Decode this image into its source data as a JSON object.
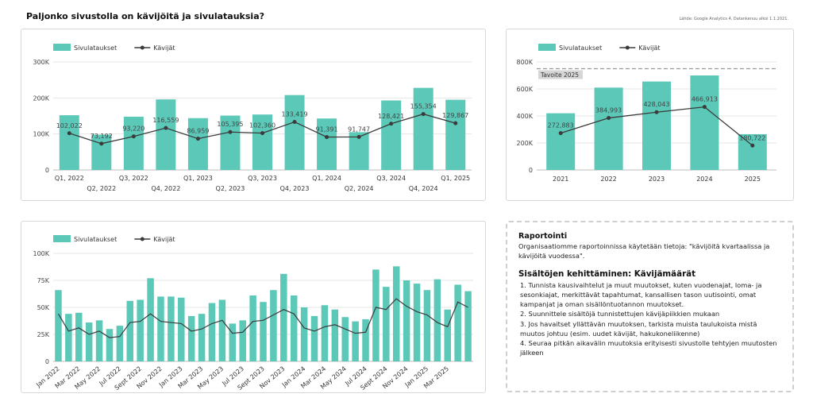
{
  "title": "Paljonko sivustolla on kävijöitä ja sivulatauksia?",
  "source": "Lähde: Google Analytics 4. Datankenuu alkoi 1.1.2021.",
  "colors": {
    "bar": "#5bc8b8",
    "line": "#3b3b3b",
    "grid": "#e6e6e6",
    "target": "#9a9a9a"
  },
  "chart_data": [
    {
      "id": "quarterly",
      "type": "bar",
      "legend": [
        "Sivulataukset",
        "Kävijät"
      ],
      "legend_position": "top-left",
      "ylim": [
        0,
        300000
      ],
      "y_ticks": [
        0,
        100000,
        200000,
        300000
      ],
      "y_tick_labels": [
        "0",
        "100K",
        "200K",
        "300K"
      ],
      "categories": [
        "Q1, 2022",
        "Q2, 2022",
        "Q3, 2022",
        "Q4, 2022",
        "Q1, 2023",
        "Q2, 2023",
        "Q3, 2023",
        "Q4, 2023",
        "Q1, 2024",
        "Q2, 2024",
        "Q3, 2024",
        "Q4, 2024",
        "Q1, 2025"
      ],
      "series": [
        {
          "name": "Sivulataukset",
          "type": "bar",
          "values": [
            152000,
            98000,
            148000,
            196000,
            144000,
            151000,
            154000,
            208000,
            143000,
            105000,
            193000,
            228000,
            195000
          ]
        },
        {
          "name": "Kävijät",
          "type": "line",
          "values": [
            102022,
            73192,
            93220,
            116559,
            86959,
            105395,
            102360,
            133419,
            91391,
            91747,
            128421,
            155354,
            129867
          ],
          "labels": [
            "102,022",
            "73,192",
            "93,220",
            "116,559",
            "86,959",
            "105,395",
            "102,360",
            "133,419",
            "91,391",
            "91,747",
            "128,421",
            "155,354",
            "129,867"
          ]
        }
      ],
      "grid": true
    },
    {
      "id": "yearly",
      "type": "bar",
      "legend": [
        "Sivulataukset",
        "Kävijät"
      ],
      "legend_position": "top-left",
      "ylim": [
        0,
        800000
      ],
      "y_ticks": [
        0,
        200000,
        400000,
        600000,
        800000
      ],
      "y_tick_labels": [
        "0",
        "200K",
        "400K",
        "600K",
        "800K"
      ],
      "categories": [
        "2021",
        "2022",
        "2023",
        "2024",
        "2025"
      ],
      "series": [
        {
          "name": "Sivulataukset",
          "type": "bar",
          "values": [
            420000,
            610000,
            655000,
            700000,
            265000
          ]
        },
        {
          "name": "Kävijät",
          "type": "line",
          "values": [
            272883,
            384993,
            428043,
            466913,
            180722
          ],
          "labels": [
            "272,883",
            "384,993",
            "428,043",
            "466,913",
            "180,722"
          ]
        }
      ],
      "target": {
        "label": "Tavoite 2025",
        "value": 750000
      },
      "grid": true
    },
    {
      "id": "monthly",
      "type": "bar",
      "legend": [
        "Sivulataukset",
        "Kävijät"
      ],
      "legend_position": "top-left",
      "ylim": [
        0,
        100000
      ],
      "y_ticks": [
        0,
        25000,
        50000,
        75000,
        100000
      ],
      "y_tick_labels": [
        "0",
        "25K",
        "50K",
        "75K",
        "100K"
      ],
      "x_tick_labels": [
        "Jan 2022",
        "Mar 2022",
        "May 2022",
        "Jul 2022",
        "Sept 2022",
        "Nov 2022",
        "Jan 2023",
        "Mar 2023",
        "May 2023",
        "Jul 2023",
        "Sept 2023",
        "Nov 2023",
        "Jan 2024",
        "Mar 2024",
        "May 2024",
        "Jul 2024",
        "Sept 2024",
        "Nov 2024",
        "Jan 2025",
        "Mar 2025"
      ],
      "series": [
        {
          "name": "Sivulataukset",
          "type": "bar",
          "values": [
            66000,
            44000,
            45000,
            36000,
            38000,
            30000,
            33000,
            56000,
            57000,
            77000,
            60000,
            60000,
            59000,
            42000,
            44000,
            54000,
            57000,
            35000,
            38000,
            61000,
            55000,
            66000,
            81000,
            61000,
            50000,
            42000,
            52000,
            48000,
            41000,
            37000,
            39000,
            85000,
            69000,
            88000,
            75000,
            72000,
            66000,
            76000,
            48000,
            71000,
            65000
          ]
        },
        {
          "name": "Kävijät",
          "type": "line",
          "values": [
            44000,
            28000,
            31000,
            25000,
            28000,
            22000,
            23000,
            36000,
            37000,
            44000,
            37000,
            36000,
            35000,
            28000,
            30000,
            35000,
            38000,
            26000,
            27000,
            37000,
            38000,
            43000,
            48000,
            44000,
            31000,
            28000,
            32000,
            34000,
            30000,
            26000,
            27000,
            50000,
            48000,
            58000,
            51000,
            46000,
            43000,
            36000,
            32000,
            55000,
            50000
          ]
        }
      ],
      "grid": true
    }
  ],
  "notes": {
    "heading1": "Raportointi",
    "text1": "Organisaatiomme raportoinnissa käytetään tietoja: \"kävijöitä kvartaalissa ja kävijöitä vuodessa\".",
    "heading2": "Sisältöjen kehittäminen: Kävijämäärät",
    "items": [
      "1. Tunnista kausivaihtelut ja muut muutokset, kuten vuodenajat, loma- ja sesonkiajat, merkittävät tapahtumat, kansallisen tason uutisointi, omat kampanjat ja oman sisällöntuotannon muutokset.",
      "2. Suunnittele sisältöjä tunnistettujen kävijäpiikkien mukaan",
      "3. Jos havaitset yllättävän muutoksen, tarkista muista taulukoista mistä muutos johtuu (esim. uudet kävijät, hakukoneliikenne)",
      "4. Seuraa pitkän aikavälin muutoksia erityisesti sivustolle tehtyjen muutosten jälkeen"
    ]
  }
}
